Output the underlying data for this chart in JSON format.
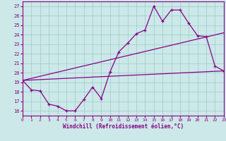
{
  "xlabel": "Windchill (Refroidissement éolien,°C)",
  "bg_color": "#cce8e8",
  "line_color": "#880088",
  "grid_color": "#99cccc",
  "spine_color": "#880088",
  "xmin": 0,
  "xmax": 23,
  "ymin": 15.5,
  "ymax": 27.5,
  "yticks": [
    16,
    17,
    18,
    19,
    20,
    21,
    22,
    23,
    24,
    25,
    26,
    27
  ],
  "xticks": [
    0,
    1,
    2,
    3,
    4,
    5,
    6,
    7,
    8,
    9,
    10,
    11,
    12,
    13,
    14,
    15,
    16,
    17,
    18,
    19,
    20,
    21,
    22,
    23
  ],
  "line1_x": [
    0,
    1,
    2,
    3,
    4,
    5,
    6,
    7,
    8,
    9,
    10,
    11,
    12,
    13,
    14,
    15,
    16,
    17,
    18,
    19,
    20,
    21,
    22,
    23
  ],
  "line1_y": [
    19.2,
    18.2,
    18.1,
    16.7,
    16.5,
    16.0,
    16.0,
    17.2,
    18.5,
    17.3,
    20.1,
    22.2,
    23.1,
    24.1,
    24.5,
    27.0,
    25.4,
    26.6,
    26.6,
    25.2,
    23.9,
    23.8,
    20.7,
    20.2
  ],
  "line2_x": [
    0,
    23
  ],
  "line2_y": [
    19.2,
    20.2
  ],
  "line3_x": [
    0,
    23
  ],
  "line3_y": [
    19.2,
    24.2
  ]
}
